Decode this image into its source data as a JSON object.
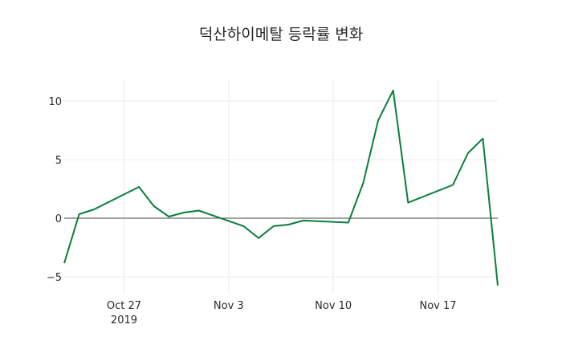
{
  "chart_data": {
    "type": "line",
    "title": "덕산하이메탈 등락률 변화",
    "xlabel": "",
    "ylabel": "",
    "x": [
      "2019-10-23",
      "2019-10-24",
      "2019-10-25",
      "2019-10-28",
      "2019-10-29",
      "2019-10-30",
      "2019-10-31",
      "2019-11-01",
      "2019-11-04",
      "2019-11-05",
      "2019-11-06",
      "2019-11-07",
      "2019-11-08",
      "2019-11-11",
      "2019-11-12",
      "2019-11-13",
      "2019-11-14",
      "2019-11-15",
      "2019-11-18",
      "2019-11-19",
      "2019-11-20",
      "2019-11-21"
    ],
    "series": [
      {
        "name": "등락률",
        "color": "#0a7d3e",
        "values": [
          -3.84,
          0.34,
          0.75,
          2.67,
          1.03,
          0.14,
          0.48,
          0.65,
          -0.68,
          -1.7,
          -0.68,
          -0.55,
          -0.2,
          -0.38,
          3.0,
          8.35,
          10.9,
          1.33,
          2.84,
          5.55,
          6.8,
          -5.75
        ]
      }
    ],
    "ylim": [
      -6.37,
      11.78
    ],
    "xlim": [
      "2019-10-23",
      "2019-11-21"
    ],
    "yticks": [
      -5,
      0,
      5,
      10
    ],
    "ytick_labels": [
      "−5",
      "0",
      "5",
      "10"
    ],
    "xticks": [
      "2019-10-27",
      "2019-11-03",
      "2019-11-10",
      "2019-11-17"
    ],
    "xtick_labels": [
      "Oct 27",
      "Nov 3",
      "Nov 10",
      "Nov 17"
    ],
    "xtick_sublabel": "2019",
    "grid": true,
    "zero_line": true,
    "legend": "none"
  }
}
